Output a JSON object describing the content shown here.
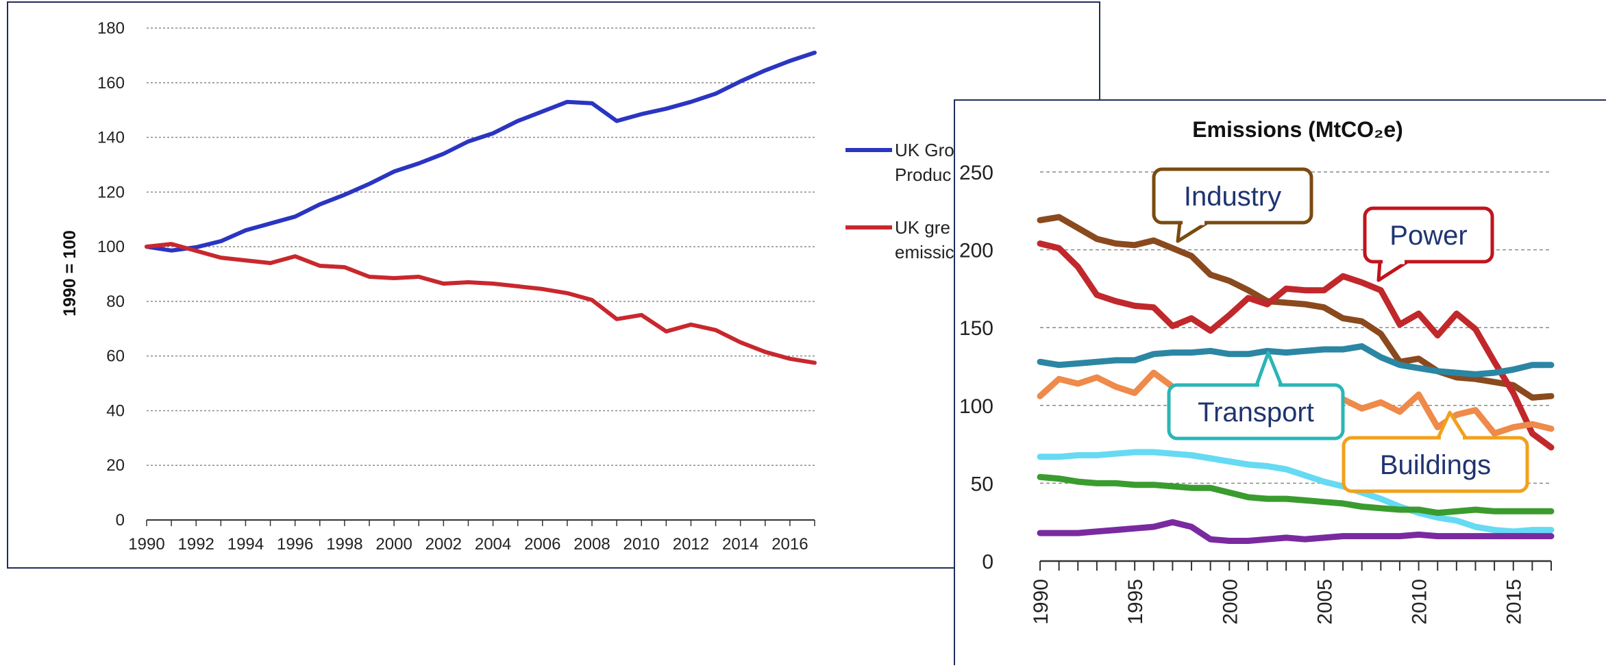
{
  "charts": [
    {
      "type": "line",
      "title": "",
      "ylabel": "1990 = 100",
      "xlabel": "",
      "ylim": [
        0,
        180
      ],
      "yticks": [
        0,
        20,
        40,
        60,
        80,
        100,
        120,
        140,
        160,
        180
      ],
      "xlim": [
        1990,
        2017
      ],
      "xticks": [
        1990,
        1992,
        1994,
        1996,
        1998,
        2000,
        2002,
        2004,
        2006,
        2008,
        2010,
        2012,
        2014,
        2016
      ],
      "grid": true,
      "legend": {
        "placement": "right",
        "entries": [
          {
            "lines": [
              "UK Gro",
              "Produc"
            ],
            "color": "#2a35c2"
          },
          {
            "lines": [
              "UK gre",
              "emissic"
            ],
            "color": "#c8282d"
          }
        ]
      },
      "series": [
        {
          "color": "#2a35c2",
          "x": [
            1990,
            1991,
            1992,
            1993,
            1994,
            1995,
            1996,
            1997,
            1998,
            1999,
            2000,
            2001,
            2002,
            2003,
            2004,
            2005,
            2006,
            2007,
            2008,
            2009,
            2010,
            2011,
            2012,
            2013,
            2014,
            2015,
            2016,
            2017
          ],
          "values": [
            100,
            98.6,
            99.8,
            102,
            106,
            108.5,
            111,
            115.5,
            119,
            123,
            127.5,
            130.5,
            134,
            138.5,
            141.5,
            146,
            149.5,
            153,
            152.5,
            146,
            148.5,
            150.5,
            153,
            156,
            160.5,
            164.5,
            168,
            171
          ]
        },
        {
          "color": "#c8282d",
          "x": [
            1990,
            1991,
            1992,
            1993,
            1994,
            1995,
            1996,
            1997,
            1998,
            1999,
            2000,
            2001,
            2002,
            2003,
            2004,
            2005,
            2006,
            2007,
            2008,
            2009,
            2010,
            2011,
            2012,
            2013,
            2014,
            2015,
            2016,
            2017
          ],
          "values": [
            100,
            101,
            98.5,
            96,
            95,
            94,
            96.5,
            93,
            92.5,
            89,
            88.5,
            89,
            86.5,
            87,
            86.5,
            85.5,
            84.5,
            83,
            80.5,
            73.5,
            75,
            69,
            71.5,
            69.5,
            65,
            61.5,
            59,
            57.5
          ]
        }
      ]
    },
    {
      "type": "line",
      "title": "Emissions (MtCO₂e)",
      "xlabel": "",
      "ylabel": "",
      "ylim": [
        0,
        250
      ],
      "yticks": [
        0,
        50,
        100,
        150,
        200,
        250
      ],
      "xlim": [
        1990,
        2017
      ],
      "xticks": [
        1990,
        1995,
        2000,
        2005,
        2010,
        2015
      ],
      "grid": true,
      "annotations": [
        {
          "text": "Industry",
          "color": "#7a4a10"
        },
        {
          "text": "Power",
          "color": "#c0141c"
        },
        {
          "text": "Transport",
          "color": "#2ab5b8"
        },
        {
          "text": "Buildings",
          "color": "#f2a01c"
        }
      ],
      "series": [
        {
          "color": "#8a4a1e",
          "x": [
            1990,
            1991,
            1992,
            1993,
            1994,
            1995,
            1996,
            1997,
            1998,
            1999,
            2000,
            2001,
            2002,
            2003,
            2004,
            2005,
            2006,
            2007,
            2008,
            2009,
            2010,
            2011,
            2012,
            2013,
            2014,
            2015,
            2016,
            2017
          ],
          "values": [
            219,
            221,
            214,
            207,
            204,
            203,
            206,
            201,
            196,
            184,
            180,
            174,
            167,
            166,
            165,
            163,
            156,
            154,
            146,
            128,
            130,
            122,
            118,
            117,
            115,
            113,
            105,
            106
          ]
        },
        {
          "color": "#c0282c",
          "x": [
            1990,
            1991,
            1992,
            1993,
            1994,
            1995,
            1996,
            1997,
            1998,
            1999,
            2000,
            2001,
            2002,
            2003,
            2004,
            2005,
            2006,
            2007,
            2008,
            2009,
            2010,
            2011,
            2012,
            2013,
            2014,
            2015,
            2016,
            2017
          ],
          "values": [
            204,
            201,
            189,
            171,
            167,
            164,
            163,
            151,
            156,
            148,
            158,
            169,
            165,
            175,
            174,
            174,
            183,
            179,
            174,
            152,
            159,
            145,
            159,
            149,
            128,
            108,
            82,
            73
          ]
        },
        {
          "color": "#2b86a3",
          "x": [
            1990,
            1991,
            1992,
            1993,
            1994,
            1995,
            1996,
            1997,
            1998,
            1999,
            2000,
            2001,
            2002,
            2003,
            2004,
            2005,
            2006,
            2007,
            2008,
            2009,
            2010,
            2011,
            2012,
            2013,
            2014,
            2015,
            2016,
            2017
          ],
          "values": [
            128,
            126,
            127,
            128,
            129,
            129,
            133,
            134,
            134,
            135,
            133,
            133,
            135,
            134,
            135,
            136,
            136,
            138,
            131,
            126,
            124,
            122,
            121,
            120,
            121,
            123,
            126,
            126
          ]
        },
        {
          "color": "#ee8a4a",
          "x": [
            1990,
            1991,
            1992,
            1993,
            1994,
            1995,
            1996,
            1997,
            1998,
            1999,
            2000,
            2001,
            2002,
            2003,
            2004,
            2005,
            2006,
            2007,
            2008,
            2009,
            2010,
            2011,
            2012,
            2013,
            2014,
            2015,
            2016,
            2017
          ],
          "values": [
            106,
            117,
            114,
            118,
            112,
            108,
            121,
            112,
            109,
            111,
            109,
            111,
            106,
            104,
            104,
            103,
            104,
            98,
            102,
            96,
            107,
            86,
            94,
            97,
            82,
            86,
            88,
            85
          ]
        },
        {
          "color": "#66daf2",
          "x": [
            1990,
            1991,
            1992,
            1993,
            1994,
            1995,
            1996,
            1997,
            1998,
            1999,
            2000,
            2001,
            2002,
            2003,
            2004,
            2005,
            2006,
            2007,
            2008,
            2009,
            2010,
            2011,
            2012,
            2013,
            2014,
            2015,
            2016,
            2017
          ],
          "values": [
            67,
            67,
            68,
            68,
            69,
            70,
            70,
            69,
            68,
            66,
            64,
            62,
            61,
            59,
            55,
            51,
            48,
            44,
            40,
            35,
            31,
            28,
            26,
            22,
            20,
            19,
            20,
            20
          ]
        },
        {
          "color": "#3a9c2e",
          "x": [
            1990,
            1991,
            1992,
            1993,
            1994,
            1995,
            1996,
            1997,
            1998,
            1999,
            2000,
            2001,
            2002,
            2003,
            2004,
            2005,
            2006,
            2007,
            2008,
            2009,
            2010,
            2011,
            2012,
            2013,
            2014,
            2015,
            2016,
            2017
          ],
          "values": [
            54,
            53,
            51,
            50,
            50,
            49,
            49,
            48,
            47,
            47,
            44,
            41,
            40,
            40,
            39,
            38,
            37,
            35,
            34,
            33,
            33,
            31,
            32,
            33,
            32,
            32,
            32,
            32
          ]
        },
        {
          "color": "#7a2aa0",
          "x": [
            1990,
            1991,
            1992,
            1993,
            1994,
            1995,
            1996,
            1997,
            1998,
            1999,
            2000,
            2001,
            2002,
            2003,
            2004,
            2005,
            2006,
            2007,
            2008,
            2009,
            2010,
            2011,
            2012,
            2013,
            2014,
            2015,
            2016,
            2017
          ],
          "values": [
            18,
            18,
            18,
            19,
            20,
            21,
            22,
            25,
            22,
            14,
            13,
            13,
            14,
            15,
            14,
            15,
            16,
            16,
            16,
            16,
            17,
            16,
            16,
            16,
            16,
            16,
            16,
            16
          ]
        }
      ]
    }
  ]
}
